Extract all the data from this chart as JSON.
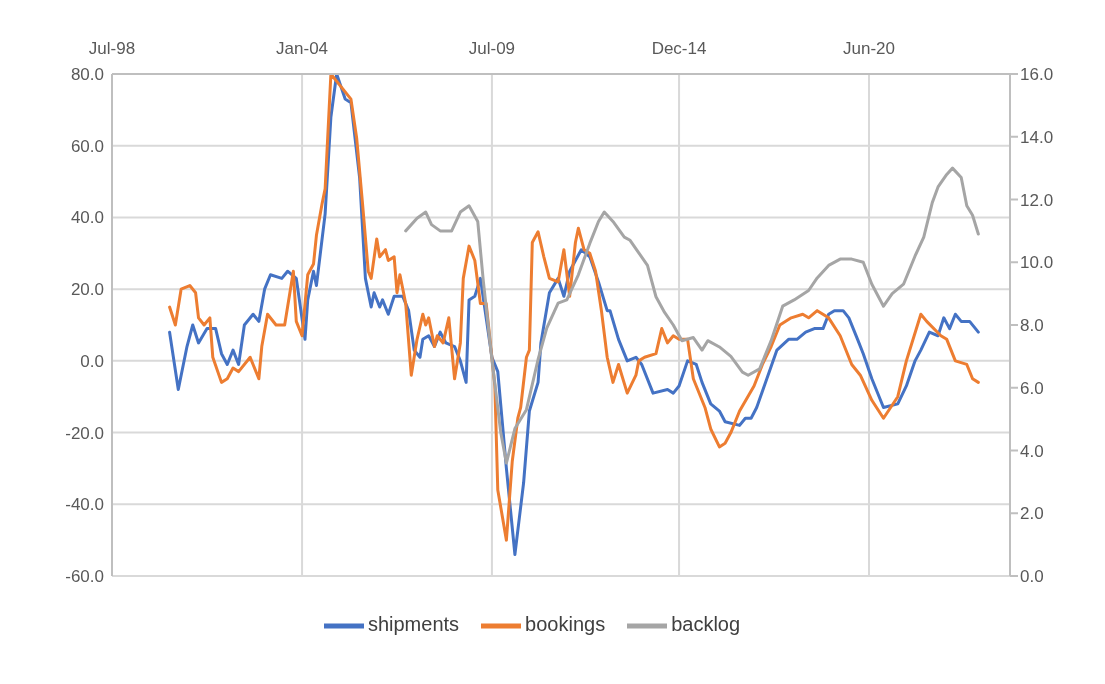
{
  "chart_data": {
    "type": "line",
    "xlim": [
      "1998-07",
      "2024-07"
    ],
    "xticks": [
      {
        "value": "1998-07",
        "label": "Jul-98"
      },
      {
        "value": "2004-01",
        "label": "Jan-04"
      },
      {
        "value": "2009-07",
        "label": "Jul-09"
      },
      {
        "value": "2014-12",
        "label": "Dec-14"
      },
      {
        "value": "2020-06",
        "label": "Jun-20"
      }
    ],
    "ylim": [
      -60,
      80
    ],
    "yticks": [
      {
        "value": -60,
        "label": "-60.0"
      },
      {
        "value": -40,
        "label": "-40.0"
      },
      {
        "value": -20,
        "label": "-20.0"
      },
      {
        "value": 0,
        "label": "0.0"
      },
      {
        "value": 20,
        "label": "20.0"
      },
      {
        "value": 40,
        "label": "40.0"
      },
      {
        "value": 60,
        "label": "60.0"
      },
      {
        "value": 80,
        "label": "80.0"
      }
    ],
    "y2lim": [
      0,
      16
    ],
    "y2ticks": [
      {
        "value": 0,
        "label": "0.0"
      },
      {
        "value": 2,
        "label": "2.0"
      },
      {
        "value": 4,
        "label": "4.0"
      },
      {
        "value": 6,
        "label": "6.0"
      },
      {
        "value": 8,
        "label": "8.0"
      },
      {
        "value": 10,
        "label": "10.0"
      },
      {
        "value": 12,
        "label": "12.0"
      },
      {
        "value": 14,
        "label": "14.0"
      },
      {
        "value": 16,
        "label": "16.0"
      }
    ],
    "grid": true,
    "legend": "bottom",
    "series": [
      {
        "name": "shipments",
        "color": "#4472c4",
        "x": [
          "2000-03",
          "2000-06",
          "2000-09",
          "2000-11",
          "2001-01",
          "2001-04",
          "2001-07",
          "2001-09",
          "2001-11",
          "2002-01",
          "2002-03",
          "2002-05",
          "2002-08",
          "2002-10",
          "2002-12",
          "2003-02",
          "2003-06",
          "2003-08",
          "2003-11",
          "2004-02",
          "2004-03",
          "2004-05",
          "2004-06",
          "2004-09",
          "2004-11",
          "2005-01",
          "2005-04",
          "2005-06",
          "2005-09",
          "2005-11",
          "2006-01",
          "2006-02",
          "2006-04",
          "2006-05",
          "2006-07",
          "2006-09",
          "2006-12",
          "2007-02",
          "2007-04",
          "2007-06",
          "2007-07",
          "2007-09",
          "2007-11",
          "2008-01",
          "2008-03",
          "2008-06",
          "2008-08",
          "2008-10",
          "2008-11",
          "2009-01",
          "2009-03",
          "2009-05",
          "2009-07",
          "2009-09",
          "2009-12",
          "2010-03",
          "2010-06",
          "2010-08",
          "2010-11",
          "2010-12",
          "2011-03",
          "2011-06",
          "2011-08",
          "2011-10",
          "2012-02",
          "2012-05",
          "2012-08",
          "2012-11",
          "2012-12",
          "2013-03",
          "2013-06",
          "2013-09",
          "2013-11",
          "2014-03",
          "2014-08",
          "2014-10",
          "2014-12",
          "2015-03",
          "2015-06",
          "2015-08",
          "2015-11",
          "2016-02",
          "2016-04",
          "2016-09",
          "2016-11",
          "2017-01",
          "2017-03",
          "2017-10",
          "2018-02",
          "2018-05",
          "2018-08",
          "2018-11",
          "2019-02",
          "2019-04",
          "2019-06",
          "2019-09",
          "2019-11",
          "2020-02",
          "2020-04",
          "2020-07",
          "2020-11",
          "2021-04",
          "2021-07",
          "2021-10",
          "2021-12",
          "2022-03",
          "2022-06",
          "2022-08",
          "2022-10",
          "2022-12",
          "2023-02",
          "2023-05",
          "2023-08"
        ],
        "values": [
          8,
          -8,
          4,
          10,
          5,
          9,
          9,
          2,
          -1,
          3,
          -1,
          10,
          13,
          11,
          20,
          24,
          23,
          25,
          23,
          6,
          17,
          25,
          21,
          41,
          68,
          80,
          73,
          72,
          51,
          23,
          15,
          19,
          15,
          17,
          13,
          18,
          18,
          14,
          3,
          1,
          6,
          7,
          4,
          8,
          5,
          4,
          0,
          -6,
          17,
          18,
          23,
          12,
          1,
          -3,
          -30,
          -54,
          -34,
          -14,
          -6,
          5,
          19,
          23,
          18,
          25,
          31,
          29,
          22,
          14,
          14,
          6,
          0,
          1,
          -1,
          -9,
          -8,
          -9,
          -7,
          0,
          -1,
          -6,
          -12,
          -14,
          -17,
          -18,
          -16,
          -16,
          -13,
          3,
          6,
          6,
          8,
          9,
          9,
          13,
          14,
          14,
          12,
          6,
          2,
          -5,
          -13,
          -12,
          -7,
          0,
          3,
          8,
          7,
          12,
          9,
          13,
          11,
          11,
          8
        ]
      },
      {
        "name": "bookings",
        "color": "#ed7d31",
        "x": [
          "2000-03",
          "2000-05",
          "2000-07",
          "2000-10",
          "2000-12",
          "2001-01",
          "2001-03",
          "2001-05",
          "2001-06",
          "2001-09",
          "2001-11",
          "2002-01",
          "2002-03",
          "2002-07",
          "2002-10",
          "2002-11",
          "2003-01",
          "2003-04",
          "2003-07",
          "2003-10",
          "2003-11",
          "2004-01",
          "2004-03",
          "2004-05",
          "2004-06",
          "2004-08",
          "2004-09",
          "2004-11",
          "2005-06",
          "2005-08",
          "2005-10",
          "2005-12",
          "2006-01",
          "2006-03",
          "2006-04",
          "2006-06",
          "2006-07",
          "2006-09",
          "2006-10",
          "2006-11",
          "2007-01",
          "2007-03",
          "2007-05",
          "2007-07",
          "2007-08",
          "2007-09",
          "2007-11",
          "2007-12",
          "2008-02",
          "2008-04",
          "2008-06",
          "2008-08",
          "2008-09",
          "2008-11",
          "2009-01",
          "2009-03",
          "2009-05",
          "2009-08",
          "2009-09",
          "2009-12",
          "2010-02",
          "2010-04",
          "2010-05",
          "2010-07",
          "2010-08",
          "2010-09",
          "2010-11",
          "2011-01",
          "2011-03",
          "2011-06",
          "2011-08",
          "2011-10",
          "2011-12",
          "2012-01",
          "2012-03",
          "2012-05",
          "2012-07",
          "2012-09",
          "2012-11",
          "2013-01",
          "2013-03",
          "2013-06",
          "2013-09",
          "2013-10",
          "2013-12",
          "2014-04",
          "2014-06",
          "2014-08",
          "2014-10",
          "2014-12",
          "2015-03",
          "2015-05",
          "2015-09",
          "2015-11",
          "2016-02",
          "2016-04",
          "2016-06",
          "2016-09",
          "2017-02",
          "2017-05",
          "2017-08",
          "2017-11",
          "2018-03",
          "2018-07",
          "2018-09",
          "2018-12",
          "2019-04",
          "2019-08",
          "2019-12",
          "2020-03",
          "2020-07",
          "2020-11",
          "2021-04",
          "2021-07",
          "2021-12",
          "2022-02",
          "2022-07",
          "2022-09",
          "2022-12",
          "2023-04",
          "2023-06",
          "2023-08"
        ],
        "values": [
          15,
          10,
          20,
          21,
          19,
          12,
          10,
          12,
          1,
          -6,
          -5,
          -2,
          -3,
          1,
          -5,
          4,
          13,
          10,
          10,
          25,
          11,
          7,
          24,
          27,
          35,
          44,
          48,
          80,
          73,
          62,
          44,
          25,
          23,
          34,
          29,
          31,
          28,
          29,
          19,
          24,
          16,
          -4,
          6,
          13,
          10,
          12,
          4,
          7,
          5,
          12,
          -5,
          5,
          23,
          32,
          28,
          16,
          16,
          -7,
          -36,
          -50,
          -28,
          -16,
          -13,
          1,
          3,
          33,
          36,
          29,
          23,
          22,
          31,
          18,
          33,
          37,
          31,
          30,
          25,
          14,
          1,
          -6,
          -1,
          -9,
          -4,
          0,
          1,
          2,
          9,
          5,
          7,
          6,
          6,
          -5,
          -13,
          -19,
          -24,
          -23,
          -20,
          -14,
          -7,
          -1,
          4,
          10,
          12,
          13,
          12,
          14,
          12,
          7,
          -1,
          -4,
          -11,
          -16,
          -10,
          0,
          13,
          11,
          7,
          6,
          0,
          -1,
          -5,
          -6
        ]
      },
      {
        "name": "backlog",
        "color": "#a5a5a5",
        "axis": "y2",
        "x": [
          "2007-01",
          "2007-05",
          "2007-08",
          "2007-10",
          "2008-01",
          "2008-05",
          "2008-08",
          "2008-11",
          "2009-02",
          "2009-04",
          "2009-07",
          "2009-10",
          "2009-12",
          "2010-03",
          "2010-07",
          "2010-11",
          "2011-02",
          "2011-06",
          "2011-09",
          "2012-01",
          "2012-05",
          "2012-08",
          "2012-10",
          "2013-01",
          "2013-05",
          "2013-07",
          "2013-10",
          "2014-01",
          "2014-04",
          "2014-07",
          "2014-10",
          "2015-01",
          "2015-05",
          "2015-08",
          "2015-10",
          "2016-02",
          "2016-06",
          "2016-10",
          "2016-12",
          "2017-04",
          "2017-08",
          "2017-12",
          "2018-04",
          "2018-09",
          "2018-12",
          "2019-04",
          "2019-08",
          "2019-12",
          "2020-04",
          "2020-07",
          "2020-11",
          "2021-02",
          "2021-06",
          "2021-10",
          "2022-01",
          "2022-04",
          "2022-06",
          "2022-09",
          "2022-11",
          "2023-02",
          "2023-04",
          "2023-06",
          "2023-08"
        ],
        "values": [
          11.0,
          11.4,
          11.6,
          11.2,
          11.0,
          11.0,
          11.6,
          11.8,
          11.3,
          9.4,
          6.9,
          4.6,
          3.6,
          4.7,
          5.3,
          6.9,
          7.9,
          8.7,
          8.8,
          9.6,
          10.6,
          11.3,
          11.6,
          11.3,
          10.8,
          10.7,
          10.3,
          9.9,
          8.9,
          8.4,
          8.0,
          7.5,
          7.6,
          7.2,
          7.5,
          7.3,
          7.0,
          6.5,
          6.4,
          6.6,
          7.5,
          8.6,
          8.8,
          9.1,
          9.5,
          9.9,
          10.1,
          10.1,
          10.0,
          9.3,
          8.6,
          9.0,
          9.3,
          10.2,
          10.8,
          11.9,
          12.4,
          12.8,
          13.0,
          12.7,
          11.8,
          11.5,
          10.9
        ]
      }
    ]
  }
}
